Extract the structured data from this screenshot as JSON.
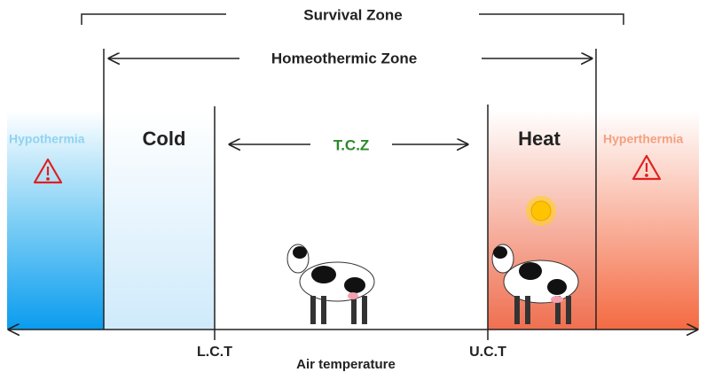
{
  "zones": {
    "survival": "Survival Zone",
    "homeothermic": "Homeothermic Zone",
    "tcz": "T.C.Z",
    "cold": "Cold",
    "heat": "Heat",
    "hypothermia": "Hypothermia",
    "hyperthermia": "Hyperthermia"
  },
  "axis": {
    "label": "Air temperature",
    "lct": "L.C.T",
    "uct": "U.C.T"
  }
}
